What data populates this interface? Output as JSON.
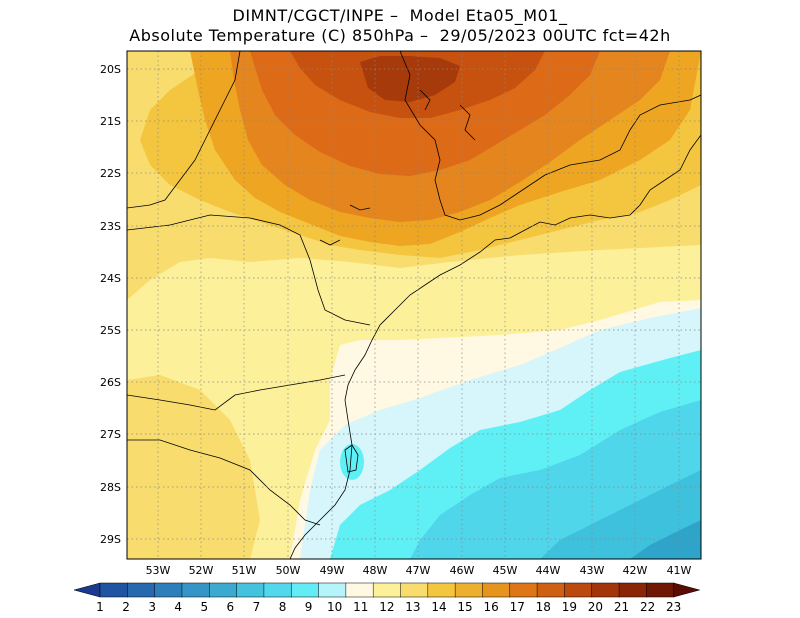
{
  "header": {
    "line1": "DIMNT/CGCT/INPE –  Model Eta05_M01_",
    "line2": "Absolute Temperature (C) 850hPa –  29/05/2023 00UTC fct=42h"
  },
  "map": {
    "lat_labels": [
      "20S",
      "21S",
      "22S",
      "23S",
      "24S",
      "25S",
      "26S",
      "27S",
      "28S",
      "29S"
    ],
    "lon_labels": [
      "53W",
      "52W",
      "51W",
      "50W",
      "49W",
      "48W",
      "47W",
      "46W",
      "45W",
      "44W",
      "43W",
      "42W",
      "41W"
    ],
    "colors": {
      "c6": "#2ea4ca",
      "c7": "#3ec1dc",
      "c8": "#4fd6ea",
      "c9": "#5ff0f6",
      "c11": "#d6f6fb",
      "c12": "#fff8e2",
      "c13": "#fdf09a",
      "c14": "#f8dd6e",
      "c15": "#f4c640",
      "c16": "#eda522",
      "c17": "#e5851e",
      "c18": "#dc6a16",
      "c19": "#c7520f",
      "c20": "#a63a0a"
    }
  },
  "colorbar": {
    "labels": [
      "1",
      "2",
      "3",
      "4",
      "5",
      "6",
      "7",
      "8",
      "9",
      "10",
      "11",
      "12",
      "13",
      "14",
      "15",
      "16",
      "17",
      "18",
      "19",
      "20",
      "21",
      "22",
      "23"
    ],
    "colors": [
      "#1b3a8f",
      "#1f54a3",
      "#2669ae",
      "#2d7fbb",
      "#3595c6",
      "#3caace",
      "#45c3de",
      "#52d8ec",
      "#62ecf6",
      "#b6f4fb",
      "#fff8e2",
      "#fdf09a",
      "#f8dd6e",
      "#f4c640",
      "#edb02c",
      "#e5941e",
      "#dc7616",
      "#cf5f12",
      "#bc4a0e",
      "#a3350a",
      "#8a2608",
      "#711805",
      "#5a0b04"
    ]
  }
}
